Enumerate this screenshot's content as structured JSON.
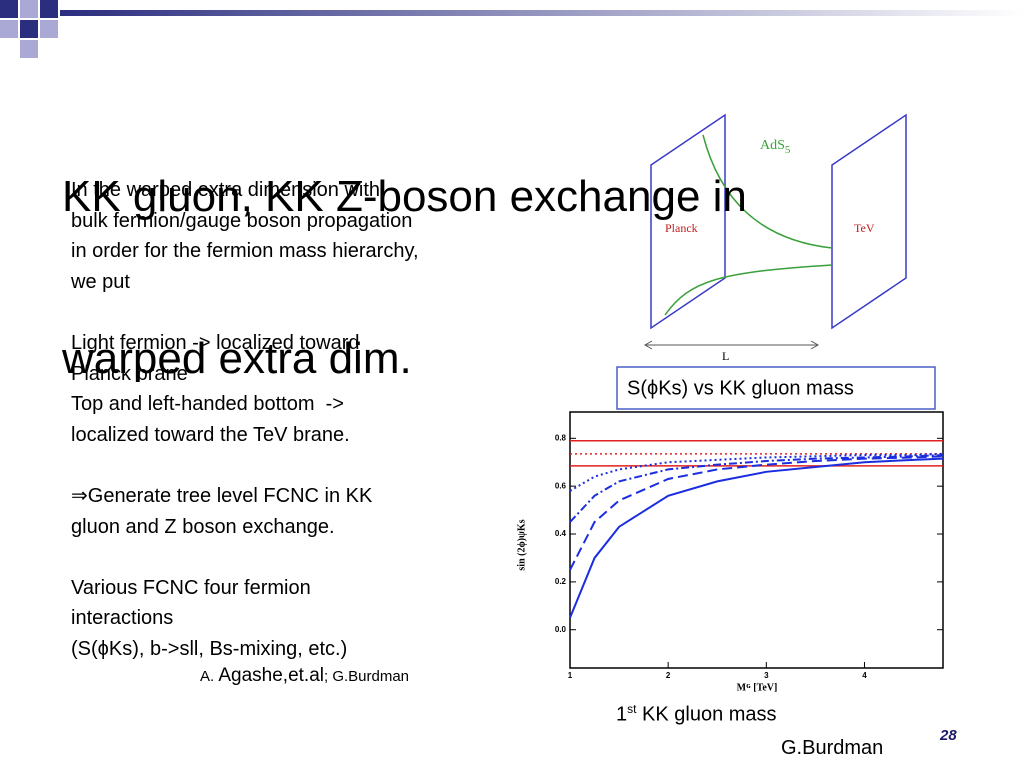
{
  "slide": {
    "title_lines": [
      "KK gluon, KK Z-boson exchange in",
      "warped extra dim."
    ],
    "body_lines": [
      "In the warped extra dimension with",
      "bulk fermion/gauge boson propagation",
      "in order for the fermion mass hierarchy,",
      "we put",
      "",
      "Light fermion -> localized toward",
      "Planck brane",
      "Top and left-handed bottom  ->",
      "localized toward the TeV brane.",
      "",
      "⇒Generate tree level FCNC in KK",
      "gluon and Z boson exchange.",
      "",
      "Various FCNC four fermion",
      "interactions",
      "(S(ϕKs), b->sll, Bs-mixing, etc.)"
    ],
    "citation": {
      "a": "A. ",
      "b": "Agashe,et.al",
      "c": "; G.Burdman"
    },
    "diagram": {
      "space": "AdS",
      "space_sub": "5",
      "left_brane": "Planck",
      "right_brane": "TeV",
      "length": "L"
    },
    "plot_caption": "S(ϕKs) vs KK gluon mass",
    "xlabel_caption": {
      "num": "1",
      "sup": "st",
      "rest": " KK gluon mass"
    },
    "credit": "G.Burdman",
    "page_number": "28"
  },
  "chart_data": {
    "type": "line",
    "x": [
      1,
      1.25,
      1.5,
      2,
      2.5,
      3,
      3.5,
      4,
      4.5,
      4.8
    ],
    "series": [
      {
        "color": "#1a2ee0",
        "dash": "solid",
        "values": [
          0.05,
          0.3,
          0.43,
          0.56,
          0.62,
          0.66,
          0.68,
          0.7,
          0.71,
          0.715
        ]
      },
      {
        "color": "#1a2ee0",
        "dash": "dashed",
        "values": [
          0.25,
          0.45,
          0.54,
          0.63,
          0.67,
          0.69,
          0.705,
          0.715,
          0.72,
          0.725
        ]
      },
      {
        "color": "#1a2ee0",
        "dash": "dashdot",
        "values": [
          0.45,
          0.56,
          0.62,
          0.67,
          0.69,
          0.705,
          0.715,
          0.72,
          0.725,
          0.73
        ]
      },
      {
        "color": "#1a2ee0",
        "dash": "dotted",
        "values": [
          0.58,
          0.64,
          0.67,
          0.7,
          0.71,
          0.72,
          0.725,
          0.73,
          0.73,
          0.735
        ]
      }
    ],
    "reference_lines": [
      {
        "value": 0.79,
        "style": "solid"
      },
      {
        "value": 0.685,
        "style": "solid"
      },
      {
        "value": 0.735,
        "style": "dotted"
      }
    ],
    "reference_color": "#e02020",
    "xlabel": "Mᴳ [TeV]",
    "ylabel": "sin (2ϕ)ψKs",
    "xlim": [
      1,
      4.8
    ],
    "ylim": [
      -0.16,
      0.91
    ],
    "xticks": [
      1,
      2,
      3,
      4
    ],
    "yticks": [
      {
        "value": 0,
        "label": "0.0"
      },
      0.2,
      0.4,
      0.6,
      0.8
    ]
  }
}
